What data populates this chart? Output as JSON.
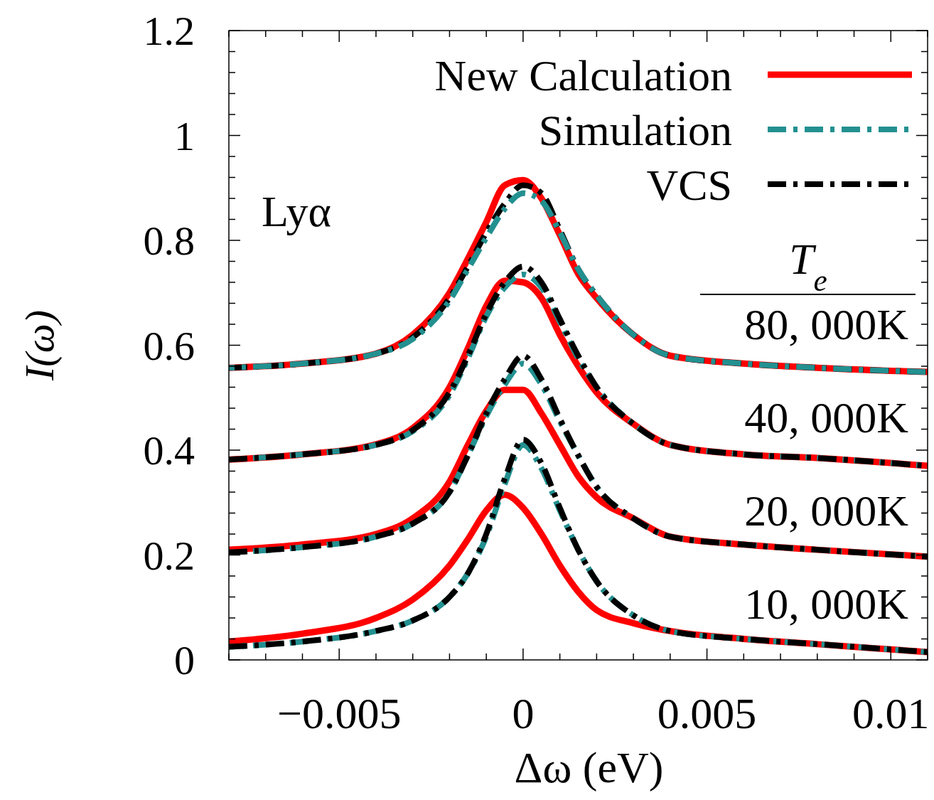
{
  "chart_data": {
    "type": "line",
    "xlabel": "Δω (eV)",
    "ylabel": "I(ω)",
    "x": [
      -0.008,
      -0.006,
      -0.004,
      -0.003,
      -0.002,
      -0.0015,
      -0.001,
      -0.0005,
      0,
      0.0005,
      0.001,
      0.0015,
      0.002,
      0.003,
      0.004,
      0.006,
      0.008,
      0.011
    ],
    "series": [
      {
        "name": "New Calculation",
        "color": "#ff0000",
        "line_style": "solid",
        "values": [
          0.557,
          0.565,
          0.584,
          0.62,
          0.7,
          0.765,
          0.835,
          0.905,
          0.915,
          0.88,
          0.81,
          0.736,
          0.69,
          0.62,
          0.58,
          0.565,
          0.557,
          0.549
        ]
      },
      {
        "name": "Simulation",
        "color": "#239090",
        "line_style": "dashed",
        "values": [
          0.557,
          0.565,
          0.584,
          0.612,
          0.685,
          0.745,
          0.805,
          0.86,
          0.89,
          0.875,
          0.815,
          0.745,
          0.695,
          0.62,
          0.58,
          0.565,
          0.557,
          0.549
        ]
      },
      {
        "name": "VCS",
        "color": "#000000",
        "line_style": "dashed",
        "values": [
          0.557,
          0.565,
          0.584,
          0.615,
          0.69,
          0.75,
          0.815,
          0.87,
          0.905,
          0.89,
          0.82,
          0.745,
          0.695,
          0.62,
          0.58,
          0.565,
          0.557,
          0.549
        ]
      },
      {
        "color": "#ff0000",
        "line_style": "solid",
        "values": [
          0.382,
          0.392,
          0.411,
          0.442,
          0.52,
          0.594,
          0.675,
          0.723,
          0.72,
          0.69,
          0.62,
          0.56,
          0.51,
          0.45,
          0.41,
          0.392,
          0.385,
          0.37
        ]
      },
      {
        "color": "#000000",
        "line_style": "dashed",
        "values": [
          0.382,
          0.392,
          0.41,
          0.438,
          0.51,
          0.58,
          0.66,
          0.72,
          0.75,
          0.72,
          0.65,
          0.58,
          0.52,
          0.45,
          0.41,
          0.392,
          0.385,
          0.37
        ]
      },
      {
        "color": "#239090",
        "line_style": "dashed",
        "values": [
          0.382,
          0.392,
          0.41,
          0.436,
          0.505,
          0.575,
          0.655,
          0.71,
          0.735,
          0.71,
          0.645,
          0.575,
          0.52,
          0.45,
          0.41,
          0.392,
          0.385,
          0.37
        ]
      },
      {
        "color": "#ff0000",
        "line_style": "solid",
        "values": [
          0.21,
          0.22,
          0.24,
          0.27,
          0.34,
          0.41,
          0.475,
          0.515,
          0.515,
          0.47,
          0.41,
          0.35,
          0.31,
          0.27,
          0.235,
          0.22,
          0.21,
          0.197
        ]
      },
      {
        "color": "#000000",
        "line_style": "dashed",
        "values": [
          0.205,
          0.215,
          0.235,
          0.26,
          0.32,
          0.39,
          0.47,
          0.535,
          0.58,
          0.535,
          0.46,
          0.39,
          0.33,
          0.27,
          0.235,
          0.22,
          0.21,
          0.197
        ]
      },
      {
        "color": "#239090",
        "line_style": "dashed",
        "values": [
          0.205,
          0.215,
          0.235,
          0.26,
          0.32,
          0.39,
          0.465,
          0.525,
          0.565,
          0.525,
          0.455,
          0.39,
          0.33,
          0.27,
          0.235,
          0.22,
          0.21,
          0.197
        ]
      },
      {
        "color": "#ff0000",
        "line_style": "solid",
        "values": [
          0.035,
          0.05,
          0.08,
          0.115,
          0.18,
          0.23,
          0.285,
          0.315,
          0.29,
          0.24,
          0.18,
          0.13,
          0.095,
          0.07,
          0.055,
          0.04,
          0.03,
          0.015
        ]
      },
      {
        "color": "#000000",
        "line_style": "dashed",
        "values": [
          0.025,
          0.035,
          0.055,
          0.075,
          0.12,
          0.165,
          0.24,
          0.345,
          0.42,
          0.375,
          0.29,
          0.21,
          0.15,
          0.085,
          0.055,
          0.04,
          0.03,
          0.015
        ]
      },
      {
        "color": "#239090",
        "line_style": "dashed",
        "values": [
          0.025,
          0.035,
          0.055,
          0.075,
          0.12,
          0.165,
          0.235,
          0.335,
          0.41,
          0.365,
          0.285,
          0.21,
          0.15,
          0.085,
          0.055,
          0.04,
          0.03,
          0.015
        ]
      }
    ],
    "xlim": [
      -0.008,
      0.011
    ],
    "xticks": [
      {
        "value": -0.008,
        "label": null
      },
      {
        "value": -0.007,
        "label": null
      },
      {
        "value": -0.006,
        "label": null
      },
      {
        "value": -0.005,
        "label": "−0.005"
      },
      {
        "value": -0.004,
        "label": null
      },
      {
        "value": -0.003,
        "label": null
      },
      {
        "value": -0.002,
        "label": null
      },
      {
        "value": -0.001,
        "label": null
      },
      0,
      {
        "value": 0.001,
        "label": null
      },
      {
        "value": 0.002,
        "label": null
      },
      {
        "value": 0.003,
        "label": null
      },
      {
        "value": 0.004,
        "label": null
      },
      0.005,
      {
        "value": 0.006,
        "label": null
      },
      {
        "value": 0.007,
        "label": null
      },
      {
        "value": 0.008,
        "label": null
      },
      {
        "value": 0.009,
        "label": null
      },
      0.01,
      {
        "value": 0.011,
        "label": null
      }
    ],
    "ylim": [
      0,
      1.2
    ],
    "yticks": [
      0,
      {
        "value": 0.04,
        "label": null
      },
      {
        "value": 0.08,
        "label": null
      },
      {
        "value": 0.12,
        "label": null
      },
      {
        "value": 0.16,
        "label": null
      },
      0.2,
      {
        "value": 0.24,
        "label": null
      },
      {
        "value": 0.28,
        "label": null
      },
      {
        "value": 0.32,
        "label": null
      },
      {
        "value": 0.36,
        "label": null
      },
      0.4,
      {
        "value": 0.44,
        "label": null
      },
      {
        "value": 0.48,
        "label": null
      },
      {
        "value": 0.52,
        "label": null
      },
      {
        "value": 0.56,
        "label": null
      },
      0.6,
      {
        "value": 0.64,
        "label": null
      },
      {
        "value": 0.68,
        "label": null
      },
      {
        "value": 0.72,
        "label": null
      },
      {
        "value": 0.76,
        "label": null
      },
      0.8,
      {
        "value": 0.84,
        "label": null
      },
      {
        "value": 0.88,
        "label": null
      },
      {
        "value": 0.92,
        "label": null
      },
      {
        "value": 0.96,
        "label": null
      },
      1,
      {
        "value": 1.04,
        "label": null
      },
      {
        "value": 1.08,
        "label": null
      },
      {
        "value": 1.12,
        "label": null
      },
      {
        "value": 1.16,
        "label": null
      },
      1.2
    ],
    "grid": false,
    "legend": "top right",
    "annotations": [
      "Lyα",
      "T$_{e}$",
      "80, 000K",
      "40, 000K",
      "20, 000K",
      "10, 000K"
    ]
  }
}
